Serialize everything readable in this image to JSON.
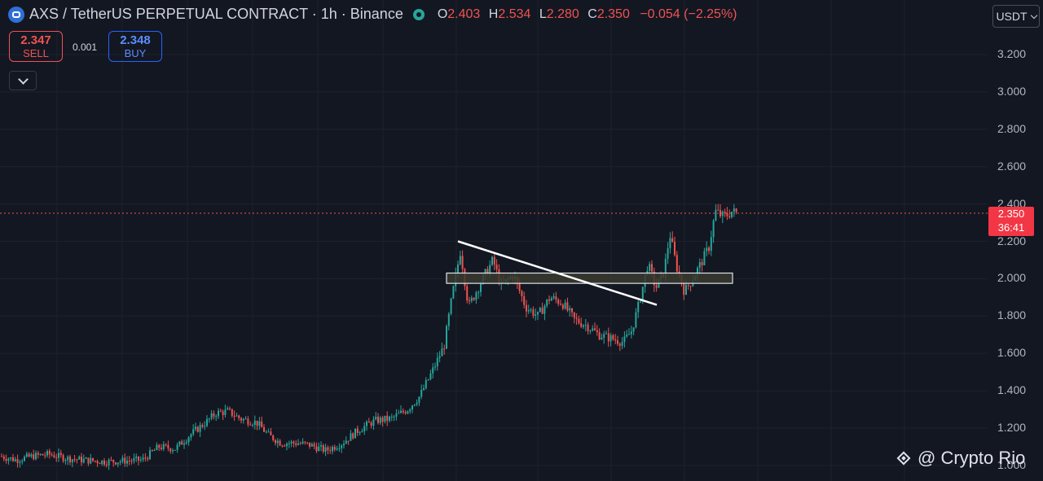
{
  "header": {
    "title": "AXS / TetherUS PERPETUAL CONTRACT · 1h · Binance",
    "ohlc": {
      "o_label": "O",
      "o": "2.403",
      "h_label": "H",
      "h": "2.534",
      "l_label": "L",
      "l": "2.280",
      "c_label": "C",
      "c": "2.350",
      "change": "−0.054 (−2.25%)"
    }
  },
  "trade": {
    "sell_price": "2.347",
    "sell_label": "SELL",
    "spread": "0.001",
    "buy_price": "2.348",
    "buy_label": "BUY"
  },
  "currency": "USDT",
  "price_tag": {
    "price": "2.350",
    "countdown": "36:41"
  },
  "watermark": "@ Crypto Rio",
  "colors": {
    "up": "#26a69a",
    "down": "#ef5350",
    "bg": "#131722",
    "grid": "#1e222d"
  },
  "chart_data": {
    "type": "candlestick",
    "y_ticks": [
      "3.200",
      "3.000",
      "2.800",
      "2.600",
      "2.400",
      "2.200",
      "2.000",
      "1.800",
      "1.600",
      "1.400",
      "1.200",
      "1.000"
    ],
    "ylim": [
      0.96,
      3.28
    ],
    "current_price": 2.35,
    "close_path": [
      [
        0,
        1.05
      ],
      [
        20,
        1.03
      ],
      [
        40,
        1.05
      ],
      [
        60,
        1.06
      ],
      [
        80,
        1.04
      ],
      [
        100,
        1.03
      ],
      [
        130,
        1.02
      ],
      [
        175,
        1.03
      ],
      [
        195,
        1.1
      ],
      [
        215,
        1.09
      ],
      [
        235,
        1.17
      ],
      [
        255,
        1.24
      ],
      [
        265,
        1.28
      ],
      [
        280,
        1.29
      ],
      [
        295,
        1.25
      ],
      [
        315,
        1.23
      ],
      [
        330,
        1.16
      ],
      [
        345,
        1.12
      ],
      [
        365,
        1.12
      ],
      [
        380,
        1.11
      ],
      [
        400,
        1.08
      ],
      [
        420,
        1.12
      ],
      [
        440,
        1.19
      ],
      [
        460,
        1.24
      ],
      [
        480,
        1.25
      ],
      [
        500,
        1.3
      ],
      [
        515,
        1.37
      ],
      [
        530,
        1.5
      ],
      [
        545,
        1.64
      ],
      [
        555,
        1.91
      ],
      [
        565,
        2.15
      ],
      [
        575,
        1.85
      ],
      [
        590,
        1.98
      ],
      [
        605,
        2.1
      ],
      [
        615,
        1.96
      ],
      [
        630,
        2.02
      ],
      [
        645,
        1.85
      ],
      [
        660,
        1.8
      ],
      [
        675,
        1.9
      ],
      [
        690,
        1.87
      ],
      [
        705,
        1.78
      ],
      [
        720,
        1.75
      ],
      [
        735,
        1.7
      ],
      [
        750,
        1.68
      ],
      [
        765,
        1.66
      ],
      [
        775,
        1.72
      ],
      [
        785,
        1.88
      ],
      [
        795,
        2.08
      ],
      [
        805,
        1.95
      ],
      [
        815,
        2.04
      ],
      [
        822,
        2.24
      ],
      [
        830,
        2.07
      ],
      [
        840,
        1.93
      ],
      [
        850,
        2.0
      ],
      [
        860,
        2.08
      ],
      [
        870,
        2.17
      ],
      [
        878,
        2.36
      ],
      [
        888,
        2.33
      ],
      [
        898,
        2.36
      ],
      [
        904,
        2.35
      ]
    ],
    "trendline": [
      [
        562,
        2.2
      ],
      [
        806,
        1.86
      ]
    ],
    "zone": {
      "x1": 548,
      "x2": 899,
      "top": 2.03,
      "bottom": 1.975
    }
  }
}
